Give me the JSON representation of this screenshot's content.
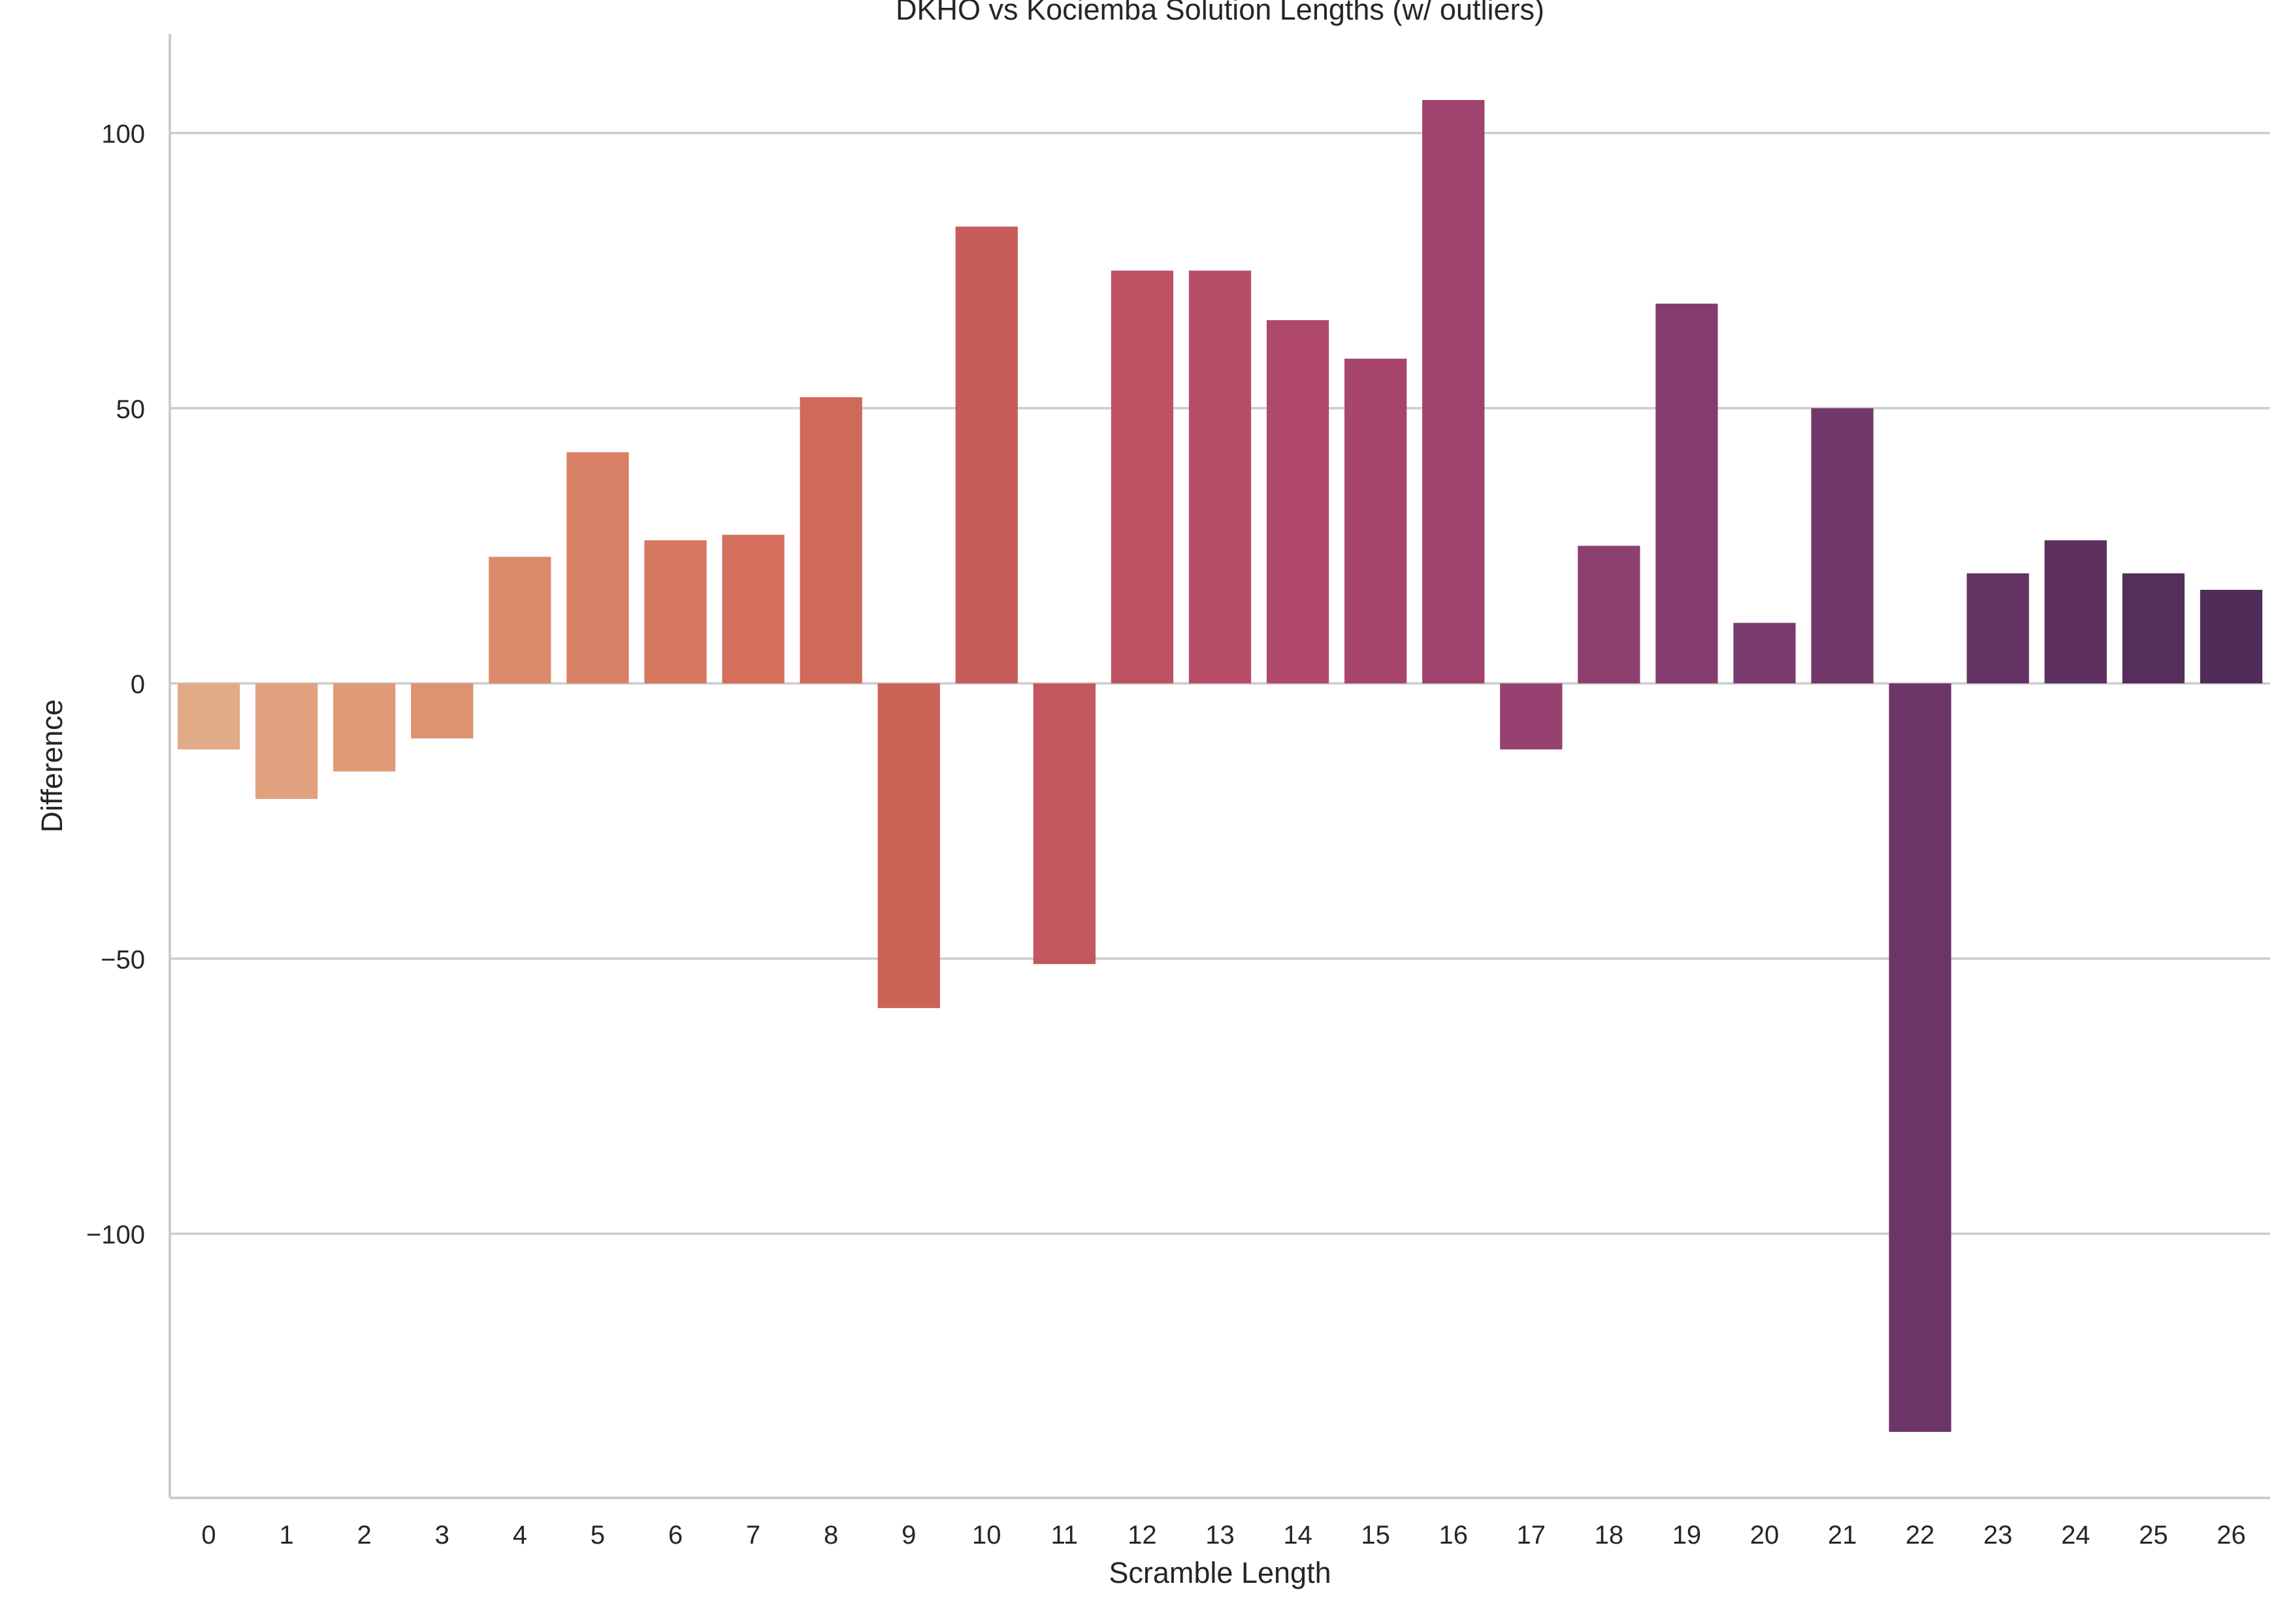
{
  "chart_data": {
    "type": "bar",
    "title": "DKHO vs Kociemba Solution Lengths (w/ outliers)",
    "xlabel": "Scramble Length",
    "ylabel": "Difference",
    "categories": [
      "0",
      "1",
      "2",
      "3",
      "4",
      "5",
      "6",
      "7",
      "8",
      "9",
      "10",
      "11",
      "12",
      "13",
      "14",
      "15",
      "16",
      "17",
      "18",
      "19",
      "20",
      "21",
      "22",
      "23",
      "24",
      "25",
      "26"
    ],
    "values": [
      -12,
      -21,
      -16,
      -10,
      23,
      42,
      26,
      27,
      52,
      -59,
      83,
      -51,
      75,
      75,
      66,
      59,
      106,
      -12,
      25,
      69,
      11,
      50,
      -136,
      20,
      26,
      20,
      17
    ],
    "ylim": [
      -148,
      118
    ],
    "yticks": [
      100,
      50,
      0,
      -50,
      -100
    ],
    "ytick_labels": [
      "100",
      "50",
      "0",
      "−50",
      "−100"
    ],
    "grid": "horizontal",
    "palette": "flare",
    "colors": [
      "#e3aa86",
      "#e1a17f",
      "#df9a78",
      "#dd9272",
      "#db8a6c",
      "#d98166",
      "#d6785f",
      "#d36f5b",
      "#cf6958",
      "#cc6357",
      "#c65d5b",
      "#c2575f",
      "#bd5263",
      "#b74d66",
      "#b0486a",
      "#a8456c",
      "#9f436e",
      "#96416f",
      "#8d3f6f",
      "#843c6e",
      "#7b3a6c",
      "#73386a",
      "#6c3567",
      "#643363",
      "#5d305f",
      "#562e5b",
      "#4f2b57"
    ]
  }
}
